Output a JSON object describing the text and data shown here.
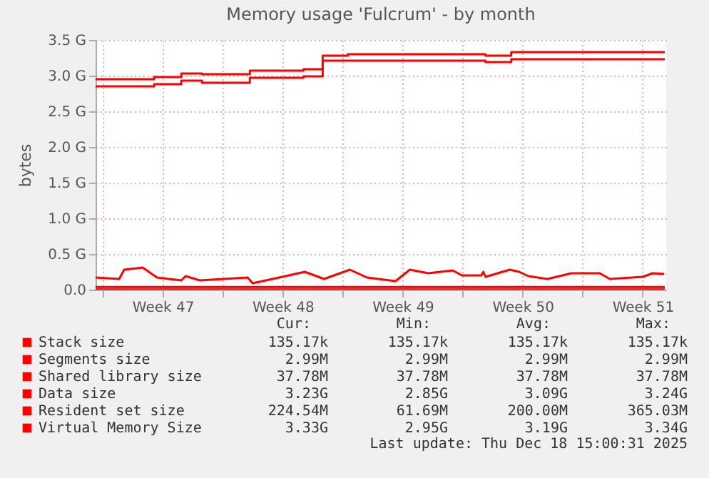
{
  "chart_data": {
    "type": "line",
    "title": "Memory usage 'Fulcrum' - by month",
    "ylabel": "bytes",
    "xlim": [
      "2025-11-16T14:00",
      "2025-12-19T21:00"
    ],
    "xticks": [
      {
        "value": "2025-11-17T00:00",
        "label": null
      },
      {
        "value": "2025-11-20T12:00",
        "label": "Week 47"
      },
      {
        "value": "2025-11-24T00:00",
        "label": null
      },
      {
        "value": "2025-11-27T12:00",
        "label": "Week 48"
      },
      {
        "value": "2025-12-01T00:00",
        "label": null
      },
      {
        "value": "2025-12-04T12:00",
        "label": "Week 49"
      },
      {
        "value": "2025-12-08T00:00",
        "label": null
      },
      {
        "value": "2025-12-11T12:00",
        "label": "Week 50"
      },
      {
        "value": "2025-12-15T00:00",
        "label": null
      },
      {
        "value": "2025-12-18T12:00",
        "label": "Week 51"
      }
    ],
    "ylim": [
      0,
      3.5
    ],
    "yticks": [
      {
        "value": 0,
        "label": "0.0"
      },
      {
        "value": 0.5,
        "label": "0.5 G"
      },
      {
        "value": 1,
        "label": "1.0 G"
      },
      {
        "value": 1.5,
        "label": "1.5 G"
      },
      {
        "value": 2,
        "label": "2.0 G"
      },
      {
        "value": 2.5,
        "label": "2.5 G"
      },
      {
        "value": 3,
        "label": "3.0 G"
      },
      {
        "value": 3.5,
        "label": "3.5 G"
      }
    ],
    "grid": true,
    "legend": "bottom",
    "line_style": "solid",
    "marker": "none",
    "series": [
      {
        "name": "Stack size",
        "color": "#ff0000",
        "x": [
          "2025-11-16T14:00",
          "2025-12-19T19:00"
        ],
        "values": [
          0.000135,
          0.000135
        ]
      },
      {
        "name": "Segments size",
        "color": "#ff0000",
        "x": [
          "2025-11-16T14:00",
          "2025-12-19T19:00"
        ],
        "values": [
          0.00299,
          0.00299
        ]
      },
      {
        "name": "Shared library size",
        "color": "#ff0000",
        "x": [
          "2025-11-16T14:00",
          "2025-12-19T19:00"
        ],
        "values": [
          0.03778,
          0.03778
        ]
      },
      {
        "name": "Data size",
        "color": "#ff0000",
        "x": [
          "2025-11-16T14:00",
          "2025-11-20T00:00",
          "2025-11-20T00:00",
          "2025-11-21T14:00",
          "2025-11-21T14:00",
          "2025-11-22T19:00",
          "2025-11-22T19:00",
          "2025-11-25T14:00",
          "2025-11-25T14:00",
          "2025-11-28T17:00",
          "2025-11-28T17:00",
          "2025-11-29T20:00",
          "2025-11-29T20:00",
          "2025-12-01T07:00",
          "2025-12-01T07:00",
          "2025-12-09T08:00",
          "2025-12-09T08:00",
          "2025-12-10T20:00",
          "2025-12-10T20:00",
          "2025-12-19T19:00"
        ],
        "values": [
          2.85,
          2.85,
          2.88,
          2.88,
          2.93,
          2.93,
          2.9,
          2.9,
          2.97,
          2.97,
          2.99,
          2.99,
          3.21,
          3.21,
          3.21,
          3.21,
          3.19,
          3.19,
          3.23,
          3.23
        ]
      },
      {
        "name": "Resident set size",
        "color": "#ff0000",
        "x": [
          "2025-11-16T14:00",
          "2025-11-17T23:00",
          "2025-11-18T06:00",
          "2025-11-19T08:00",
          "2025-11-20T04:00",
          "2025-11-21T14:00",
          "2025-11-21T20:00",
          "2025-11-22T16:00",
          "2025-11-25T11:00",
          "2025-11-25T18:00",
          "2025-11-27T16:00",
          "2025-11-28T19:00",
          "2025-11-29T22:00",
          "2025-12-01T10:00",
          "2025-12-02T10:00",
          "2025-12-04T02:00",
          "2025-12-04T22:00",
          "2025-12-06T00:00",
          "2025-12-07T10:00",
          "2025-12-07T23:00",
          "2025-12-09T02:00",
          "2025-12-09T05:00",
          "2025-12-09T08:00",
          "2025-12-10T18:00",
          "2025-12-11T07:00",
          "2025-12-11T20:00",
          "2025-12-12T23:00",
          "2025-12-14T08:00",
          "2025-12-16T00:00",
          "2025-12-16T14:00",
          "2025-12-18T12:00",
          "2025-12-19T02:00",
          "2025-12-19T18:00"
        ],
        "values": [
          0.17,
          0.15,
          0.28,
          0.31,
          0.17,
          0.13,
          0.19,
          0.13,
          0.17,
          0.09,
          0.19,
          0.25,
          0.15,
          0.28,
          0.17,
          0.12,
          0.28,
          0.23,
          0.27,
          0.2,
          0.2,
          0.25,
          0.18,
          0.28,
          0.25,
          0.19,
          0.15,
          0.23,
          0.23,
          0.15,
          0.18,
          0.23,
          0.22
        ]
      },
      {
        "name": "Virtual Memory Size",
        "color": "#ff0000",
        "x": [
          "2025-11-16T14:00",
          "2025-11-20T00:00",
          "2025-11-20T00:00",
          "2025-11-21T14:00",
          "2025-11-21T14:00",
          "2025-11-22T19:00",
          "2025-11-22T19:00",
          "2025-11-25T14:00",
          "2025-11-25T14:00",
          "2025-11-28T17:00",
          "2025-11-28T17:00",
          "2025-11-29T20:00",
          "2025-11-29T20:00",
          "2025-12-01T07:00",
          "2025-12-01T07:00",
          "2025-12-09T08:00",
          "2025-12-09T08:00",
          "2025-12-10T20:00",
          "2025-12-10T20:00",
          "2025-12-19T19:00"
        ],
        "values": [
          2.95,
          2.95,
          2.98,
          2.98,
          3.03,
          3.03,
          3.02,
          3.02,
          3.07,
          3.07,
          3.09,
          3.09,
          3.28,
          3.28,
          3.3,
          3.3,
          3.28,
          3.28,
          3.33,
          3.33
        ]
      }
    ],
    "annotations": [
      "Cur:",
      "Min:",
      "Avg:",
      "Max:",
      "135.17k",
      "135.17k",
      "135.17k",
      "135.17k",
      "2.99M",
      "2.99M",
      "2.99M",
      "2.99M",
      "37.78M",
      "37.78M",
      "37.78M",
      "37.78M",
      "3.23G",
      "2.85G",
      "3.09G",
      "3.24G",
      "224.54M",
      "61.69M",
      "200.00M",
      "365.03M",
      "3.33G",
      "2.95G",
      "3.19G",
      "3.34G",
      "Last update: Thu Dec 18 15:00:31 2025"
    ]
  }
}
